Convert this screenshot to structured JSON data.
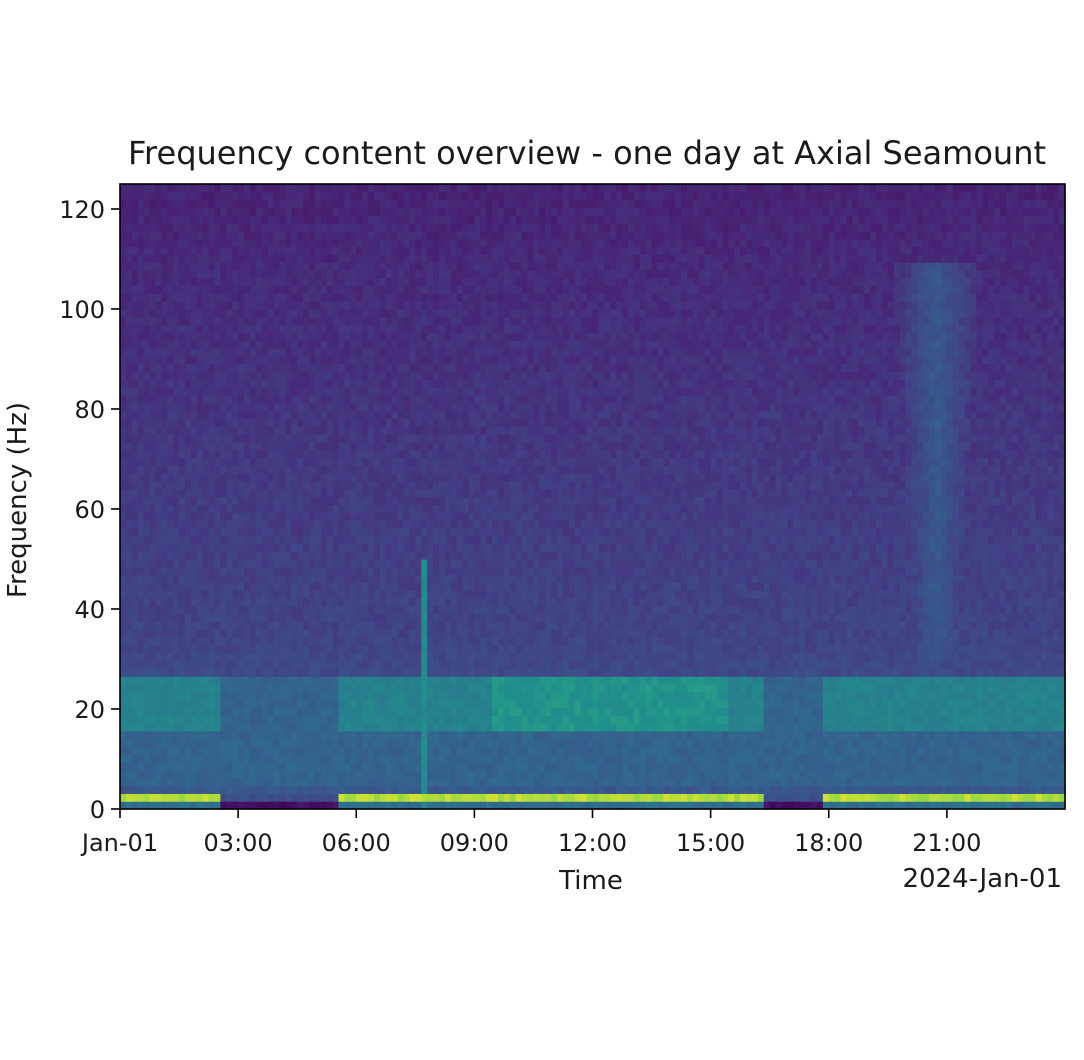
{
  "chart_data": {
    "type": "heatmap",
    "title": "Frequency content overview - one day at Axial Seamount",
    "xlabel": "Time",
    "ylabel": "Frequency (Hz)",
    "x_offset_label": "2024-Jan-01",
    "x_ticks": [
      "Jan-01",
      "03:00",
      "06:00",
      "09:00",
      "12:00",
      "15:00",
      "18:00",
      "21:00"
    ],
    "x_tick_hours": [
      0,
      3,
      6,
      9,
      12,
      15,
      18,
      21
    ],
    "xlim_hours": [
      0,
      24
    ],
    "y_ticks": [
      0,
      20,
      40,
      60,
      80,
      100,
      120
    ],
    "ylim": [
      0,
      125
    ],
    "colormap": "viridis",
    "features": [
      {
        "name": "strong low-frequency band",
        "freq_range_hz": [
          1,
          3
        ],
        "level": 0.92
      },
      {
        "name": "quiet floor",
        "freq_range_hz": [
          0,
          1
        ],
        "level": 0.05
      },
      {
        "name": "20 Hz band",
        "freq_range_hz": [
          16,
          26
        ],
        "level": 0.55
      },
      {
        "name": "broadband transient",
        "time_range_hours": [
          19.5,
          22.0
        ],
        "freq_range_hz": [
          30,
          110
        ],
        "level": 0.35
      },
      {
        "name": "spike",
        "time_hours": 7.7,
        "freq_range_hz": [
          0,
          50
        ],
        "level": 0.6
      }
    ],
    "quiet_periods_hours": [
      [
        2.5,
        5.5
      ],
      [
        16.3,
        17.8
      ]
    ],
    "grid": false,
    "legend": false
  },
  "colors": {
    "viridis_low": "#440154",
    "viridis_mid": "#21918c",
    "viridis_high": "#fde725"
  }
}
